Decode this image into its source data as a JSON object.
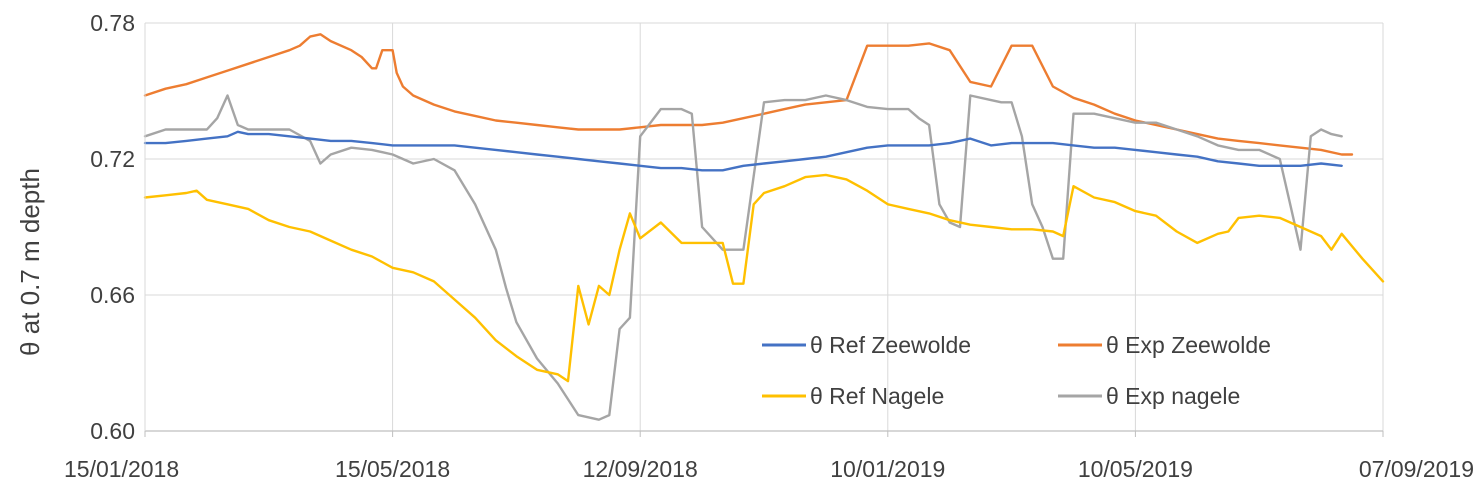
{
  "chart_data": {
    "type": "line",
    "title": "",
    "xlabel": "",
    "ylabel": "θ at 0.7 m depth",
    "xlim": [
      0,
      600
    ],
    "ylim": [
      0.6,
      0.78
    ],
    "x_tick_labels": [
      "15/01/2018",
      "15/05/2018",
      "12/09/2018",
      "10/01/2019",
      "10/05/2019",
      "07/09/2019"
    ],
    "x_tick_values": [
      0,
      120,
      240,
      360,
      480,
      600
    ],
    "y_tick_labels": [
      "0.60",
      "0.66",
      "0.72",
      "0.78"
    ],
    "y_tick_values": [
      0.6,
      0.66,
      0.72,
      0.78
    ],
    "x_units": "days since 15/01/2018",
    "grid": true,
    "legend_position": "bottom-right",
    "series": [
      {
        "name": "θ Ref Zeewolde",
        "color": "#4472c4",
        "points": [
          [
            0,
            0.727
          ],
          [
            10,
            0.727
          ],
          [
            20,
            0.728
          ],
          [
            30,
            0.729
          ],
          [
            40,
            0.73
          ],
          [
            45,
            0.732
          ],
          [
            50,
            0.731
          ],
          [
            60,
            0.731
          ],
          [
            70,
            0.73
          ],
          [
            80,
            0.729
          ],
          [
            90,
            0.728
          ],
          [
            100,
            0.728
          ],
          [
            110,
            0.727
          ],
          [
            120,
            0.726
          ],
          [
            140,
            0.726
          ],
          [
            150,
            0.726
          ],
          [
            160,
            0.725
          ],
          [
            170,
            0.724
          ],
          [
            180,
            0.723
          ],
          [
            190,
            0.722
          ],
          [
            200,
            0.721
          ],
          [
            210,
            0.72
          ],
          [
            220,
            0.719
          ],
          [
            230,
            0.718
          ],
          [
            240,
            0.717
          ],
          [
            250,
            0.716
          ],
          [
            260,
            0.716
          ],
          [
            270,
            0.715
          ],
          [
            280,
            0.715
          ],
          [
            285,
            0.716
          ],
          [
            290,
            0.717
          ],
          [
            300,
            0.718
          ],
          [
            310,
            0.719
          ],
          [
            320,
            0.72
          ],
          [
            330,
            0.721
          ],
          [
            340,
            0.723
          ],
          [
            345,
            0.724
          ],
          [
            350,
            0.725
          ],
          [
            360,
            0.726
          ],
          [
            370,
            0.726
          ],
          [
            380,
            0.726
          ],
          [
            390,
            0.727
          ],
          [
            400,
            0.729
          ],
          [
            410,
            0.726
          ],
          [
            420,
            0.727
          ],
          [
            430,
            0.727
          ],
          [
            440,
            0.727
          ],
          [
            450,
            0.726
          ],
          [
            460,
            0.725
          ],
          [
            470,
            0.725
          ],
          [
            480,
            0.724
          ],
          [
            490,
            0.723
          ],
          [
            500,
            0.722
          ],
          [
            510,
            0.721
          ],
          [
            520,
            0.719
          ],
          [
            530,
            0.718
          ],
          [
            540,
            0.717
          ],
          [
            550,
            0.717
          ],
          [
            560,
            0.717
          ],
          [
            570,
            0.718
          ],
          [
            580,
            0.717
          ]
        ]
      },
      {
        "name": "θ Exp Zeewolde",
        "color": "#ed7d31",
        "points": [
          [
            0,
            0.748
          ],
          [
            10,
            0.751
          ],
          [
            20,
            0.753
          ],
          [
            30,
            0.756
          ],
          [
            40,
            0.759
          ],
          [
            50,
            0.762
          ],
          [
            60,
            0.765
          ],
          [
            70,
            0.768
          ],
          [
            75,
            0.77
          ],
          [
            80,
            0.774
          ],
          [
            85,
            0.775
          ],
          [
            90,
            0.772
          ],
          [
            100,
            0.768
          ],
          [
            105,
            0.765
          ],
          [
            110,
            0.76
          ],
          [
            112,
            0.76
          ],
          [
            115,
            0.768
          ],
          [
            120,
            0.768
          ],
          [
            122,
            0.758
          ],
          [
            125,
            0.752
          ],
          [
            130,
            0.748
          ],
          [
            140,
            0.744
          ],
          [
            150,
            0.741
          ],
          [
            160,
            0.739
          ],
          [
            170,
            0.737
          ],
          [
            180,
            0.736
          ],
          [
            190,
            0.735
          ],
          [
            200,
            0.734
          ],
          [
            210,
            0.733
          ],
          [
            220,
            0.733
          ],
          [
            230,
            0.733
          ],
          [
            240,
            0.734
          ],
          [
            250,
            0.735
          ],
          [
            260,
            0.735
          ],
          [
            270,
            0.735
          ],
          [
            280,
            0.736
          ],
          [
            290,
            0.738
          ],
          [
            300,
            0.74
          ],
          [
            310,
            0.742
          ],
          [
            320,
            0.744
          ],
          [
            330,
            0.745
          ],
          [
            340,
            0.746
          ],
          [
            350,
            0.77
          ],
          [
            360,
            0.77
          ],
          [
            370,
            0.77
          ],
          [
            380,
            0.771
          ],
          [
            390,
            0.768
          ],
          [
            400,
            0.754
          ],
          [
            410,
            0.752
          ],
          [
            420,
            0.77
          ],
          [
            430,
            0.77
          ],
          [
            440,
            0.752
          ],
          [
            450,
            0.747
          ],
          [
            460,
            0.744
          ],
          [
            470,
            0.74
          ],
          [
            480,
            0.737
          ],
          [
            490,
            0.735
          ],
          [
            500,
            0.733
          ],
          [
            510,
            0.731
          ],
          [
            520,
            0.729
          ],
          [
            530,
            0.728
          ],
          [
            540,
            0.727
          ],
          [
            550,
            0.726
          ],
          [
            560,
            0.725
          ],
          [
            570,
            0.724
          ],
          [
            580,
            0.722
          ],
          [
            585,
            0.722
          ]
        ]
      },
      {
        "name": "θ Ref Nagele",
        "color": "#ffc000",
        "points": [
          [
            0,
            0.703
          ],
          [
            10,
            0.704
          ],
          [
            20,
            0.705
          ],
          [
            25,
            0.706
          ],
          [
            30,
            0.702
          ],
          [
            40,
            0.7
          ],
          [
            50,
            0.698
          ],
          [
            60,
            0.693
          ],
          [
            70,
            0.69
          ],
          [
            80,
            0.688
          ],
          [
            90,
            0.684
          ],
          [
            100,
            0.68
          ],
          [
            110,
            0.677
          ],
          [
            120,
            0.672
          ],
          [
            130,
            0.67
          ],
          [
            140,
            0.666
          ],
          [
            150,
            0.658
          ],
          [
            160,
            0.65
          ],
          [
            170,
            0.64
          ],
          [
            180,
            0.633
          ],
          [
            190,
            0.627
          ],
          [
            200,
            0.625
          ],
          [
            205,
            0.622
          ],
          [
            210,
            0.664
          ],
          [
            215,
            0.647
          ],
          [
            220,
            0.664
          ],
          [
            225,
            0.66
          ],
          [
            230,
            0.68
          ],
          [
            235,
            0.696
          ],
          [
            240,
            0.685
          ],
          [
            250,
            0.692
          ],
          [
            260,
            0.683
          ],
          [
            270,
            0.683
          ],
          [
            280,
            0.683
          ],
          [
            285,
            0.665
          ],
          [
            290,
            0.665
          ],
          [
            295,
            0.7
          ],
          [
            300,
            0.705
          ],
          [
            310,
            0.708
          ],
          [
            320,
            0.712
          ],
          [
            330,
            0.713
          ],
          [
            340,
            0.711
          ],
          [
            350,
            0.706
          ],
          [
            360,
            0.7
          ],
          [
            370,
            0.698
          ],
          [
            380,
            0.696
          ],
          [
            390,
            0.693
          ],
          [
            400,
            0.691
          ],
          [
            410,
            0.69
          ],
          [
            420,
            0.689
          ],
          [
            430,
            0.689
          ],
          [
            440,
            0.688
          ],
          [
            445,
            0.686
          ],
          [
            450,
            0.708
          ],
          [
            460,
            0.703
          ],
          [
            470,
            0.701
          ],
          [
            480,
            0.697
          ],
          [
            490,
            0.695
          ],
          [
            500,
            0.688
          ],
          [
            510,
            0.683
          ],
          [
            520,
            0.687
          ],
          [
            525,
            0.688
          ],
          [
            530,
            0.694
          ],
          [
            540,
            0.695
          ],
          [
            550,
            0.694
          ],
          [
            560,
            0.69
          ],
          [
            570,
            0.686
          ],
          [
            575,
            0.68
          ],
          [
            580,
            0.687
          ],
          [
            590,
            0.676
          ],
          [
            600,
            0.666
          ]
        ]
      },
      {
        "name": "θ Exp nagele",
        "color": "#a5a5a5",
        "points": [
          [
            0,
            0.73
          ],
          [
            10,
            0.733
          ],
          [
            20,
            0.733
          ],
          [
            30,
            0.733
          ],
          [
            35,
            0.738
          ],
          [
            40,
            0.748
          ],
          [
            45,
            0.735
          ],
          [
            50,
            0.733
          ],
          [
            60,
            0.733
          ],
          [
            70,
            0.733
          ],
          [
            80,
            0.728
          ],
          [
            85,
            0.718
          ],
          [
            90,
            0.722
          ],
          [
            100,
            0.725
          ],
          [
            110,
            0.724
          ],
          [
            120,
            0.722
          ],
          [
            130,
            0.718
          ],
          [
            140,
            0.72
          ],
          [
            150,
            0.715
          ],
          [
            160,
            0.7
          ],
          [
            170,
            0.68
          ],
          [
            175,
            0.663
          ],
          [
            180,
            0.648
          ],
          [
            190,
            0.632
          ],
          [
            200,
            0.621
          ],
          [
            210,
            0.607
          ],
          [
            220,
            0.605
          ],
          [
            225,
            0.607
          ],
          [
            230,
            0.645
          ],
          [
            235,
            0.65
          ],
          [
            240,
            0.73
          ],
          [
            250,
            0.742
          ],
          [
            260,
            0.742
          ],
          [
            265,
            0.74
          ],
          [
            270,
            0.69
          ],
          [
            280,
            0.68
          ],
          [
            290,
            0.68
          ],
          [
            300,
            0.745
          ],
          [
            310,
            0.746
          ],
          [
            320,
            0.746
          ],
          [
            330,
            0.748
          ],
          [
            340,
            0.746
          ],
          [
            350,
            0.743
          ],
          [
            360,
            0.742
          ],
          [
            370,
            0.742
          ],
          [
            375,
            0.738
          ],
          [
            380,
            0.735
          ],
          [
            385,
            0.7
          ],
          [
            390,
            0.692
          ],
          [
            395,
            0.69
          ],
          [
            400,
            0.748
          ],
          [
            410,
            0.746
          ],
          [
            415,
            0.745
          ],
          [
            420,
            0.745
          ],
          [
            425,
            0.73
          ],
          [
            430,
            0.7
          ],
          [
            435,
            0.69
          ],
          [
            440,
            0.676
          ],
          [
            445,
            0.676
          ],
          [
            450,
            0.74
          ],
          [
            460,
            0.74
          ],
          [
            470,
            0.738
          ],
          [
            480,
            0.736
          ],
          [
            490,
            0.736
          ],
          [
            500,
            0.733
          ],
          [
            510,
            0.73
          ],
          [
            520,
            0.726
          ],
          [
            530,
            0.724
          ],
          [
            540,
            0.724
          ],
          [
            550,
            0.72
          ],
          [
            555,
            0.7
          ],
          [
            560,
            0.68
          ],
          [
            565,
            0.73
          ],
          [
            570,
            0.733
          ],
          [
            575,
            0.731
          ],
          [
            580,
            0.73
          ]
        ]
      }
    ]
  }
}
